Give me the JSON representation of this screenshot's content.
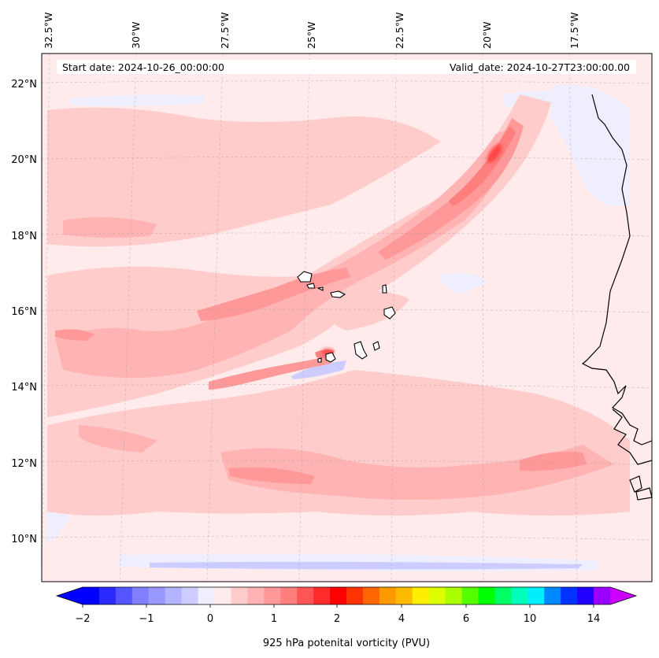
{
  "map": {
    "start_label": "Start date: 2024-10-26_00:00:00",
    "valid_label": "Valid_date: 2024-10-27T23:00:00.00",
    "lon_labels": [
      "32.5°W",
      "30°W",
      "27.5°W",
      "25°W",
      "22.5°W",
      "20°W",
      "17.5°W"
    ],
    "lat_labels": [
      "22°N",
      "20°N",
      "18°N",
      "16°N",
      "14°N",
      "12°N",
      "10°N"
    ],
    "background_color": "#ffebeb",
    "coastline_color": "#000000",
    "gridlines": true
  },
  "colorbar": {
    "label": "925 hPa potenital vorticity (PVU)",
    "tick_labels": [
      "−2",
      "−1",
      "0",
      "1",
      "2",
      "4",
      "6",
      "10",
      "14"
    ],
    "colors": [
      "#0000ff",
      "#2a2aff",
      "#5555ff",
      "#7f7fff",
      "#9999ff",
      "#b3b3ff",
      "#ccccff",
      "#eeeeff",
      "#ffebeb",
      "#ffcccc",
      "#ffb3b3",
      "#ff9999",
      "#ff7f7f",
      "#ff5555",
      "#ff2a2a",
      "#ff0000",
      "#ff3300",
      "#ff6600",
      "#ff9900",
      "#ffbb00",
      "#ffee00",
      "#ddff00",
      "#aaff00",
      "#55ff00",
      "#00ff00",
      "#00ff66",
      "#00ffbb",
      "#00eeff",
      "#0088ff",
      "#0033ff",
      "#2200ff",
      "#9900ff"
    ],
    "extend_low_color": "#0000ff",
    "extend_high_color": "#cc00ff"
  }
}
